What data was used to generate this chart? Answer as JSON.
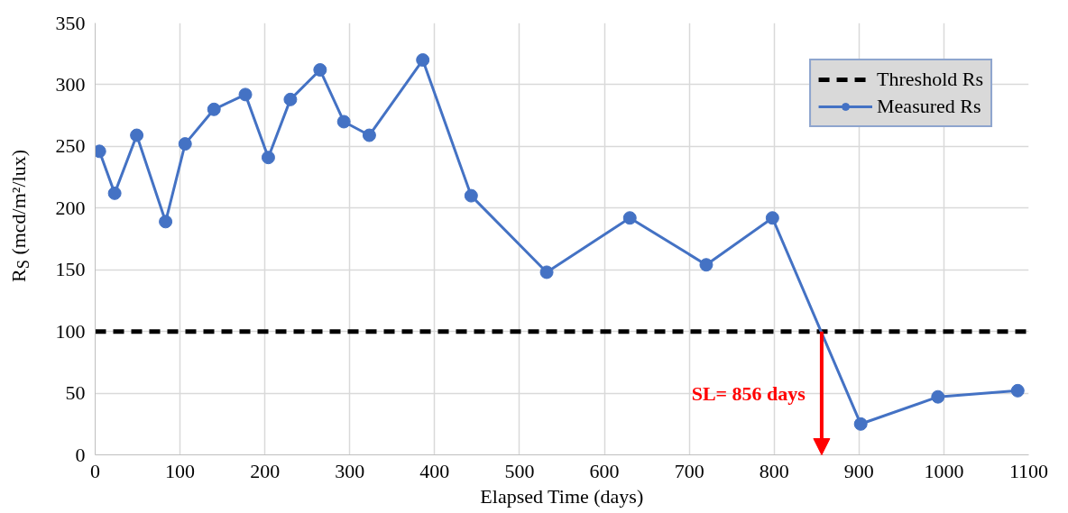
{
  "chart_data": {
    "type": "line",
    "xlabel": "Elapsed Time (days)",
    "ylabel": "R$_{S}$ (mcd/m²/lux)",
    "xlim": [
      0,
      1100
    ],
    "xticks": [
      0,
      100,
      200,
      300,
      400,
      500,
      600,
      700,
      800,
      900,
      1000,
      1100
    ],
    "ylim": [
      0,
      350
    ],
    "yticks": [
      0,
      50,
      100,
      150,
      200,
      250,
      300,
      350
    ],
    "grid": true,
    "legend": "top right",
    "marker": "circle",
    "line_style": "solid",
    "x": [
      5,
      23,
      49,
      83,
      106,
      140,
      177,
      204,
      230,
      265,
      293,
      323,
      386,
      443,
      532,
      630,
      720,
      798,
      902,
      993,
      1087
    ],
    "series": [
      {
        "name": "Measured Rs",
        "color": "#4472c4",
        "values": [
          246,
          212,
          259,
          189,
          252,
          280,
          292,
          241,
          288,
          312,
          270,
          259,
          320,
          210,
          148,
          192,
          154,
          192,
          25,
          47,
          52
        ]
      }
    ],
    "ref_lines": [
      {
        "axis": "y",
        "value": 100,
        "label": "Threshold Rs",
        "color": "#000000",
        "line_style": "dashed"
      }
    ],
    "annotations": [
      {
        "text": "SL= 856 days",
        "x": 856,
        "y": 100
      }
    ]
  }
}
